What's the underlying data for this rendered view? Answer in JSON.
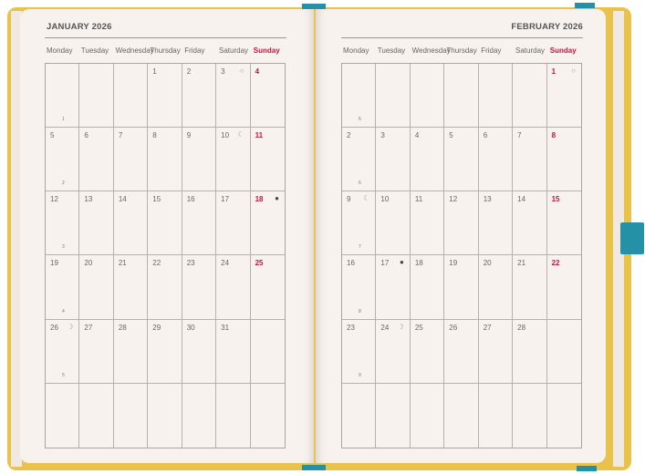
{
  "colors": {
    "cover": "#e8c24a",
    "page": "#f8f2ee",
    "sunday": "#c0173f",
    "ribbon": "#2591a6"
  },
  "weekdays": [
    "Monday",
    "Tuesday",
    "Wednesday",
    "Thursday",
    "Friday",
    "Saturday",
    "Sunday"
  ],
  "moon_glyphs": {
    "full": "○",
    "last-quarter": "☾",
    "new": "●",
    "first-quarter": "☽"
  },
  "months": [
    {
      "title": "JANUARY 2026",
      "days": [
        "",
        "",
        "",
        "1",
        "2",
        "3",
        "4",
        "5",
        "6",
        "7",
        "8",
        "9",
        "10",
        "11",
        "12",
        "13",
        "14",
        "15",
        "16",
        "17",
        "18",
        "19",
        "20",
        "21",
        "22",
        "23",
        "24",
        "25",
        "26",
        "27",
        "28",
        "29",
        "30",
        "31",
        "",
        "",
        "",
        "",
        "",
        "",
        "",
        "",
        ""
      ],
      "week_numbers": [
        "1",
        "2",
        "3",
        "4",
        "5",
        ""
      ],
      "moons": {
        "3": "full",
        "10": "last-quarter",
        "18": "new",
        "26": "first-quarter"
      }
    },
    {
      "title": "FEBRUARY 2026",
      "days": [
        "",
        "",
        "",
        "",
        "",
        "",
        "1",
        "2",
        "3",
        "4",
        "5",
        "6",
        "7",
        "8",
        "9",
        "10",
        "11",
        "12",
        "13",
        "14",
        "15",
        "16",
        "17",
        "18",
        "19",
        "20",
        "21",
        "22",
        "23",
        "24",
        "25",
        "26",
        "27",
        "28",
        "",
        "",
        "",
        "",
        "",
        "",
        "",
        ""
      ],
      "week_numbers": [
        "5",
        "6",
        "7",
        "8",
        "9",
        ""
      ],
      "moons": {
        "1": "full",
        "9": "last-quarter",
        "17": "new",
        "24": "first-quarter"
      }
    }
  ]
}
